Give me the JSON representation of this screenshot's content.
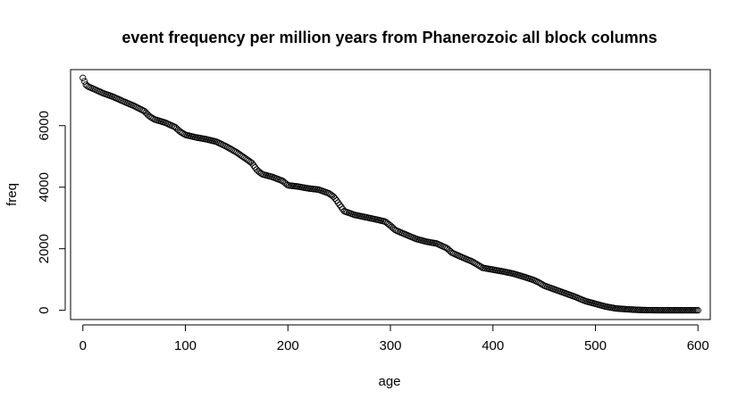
{
  "chart_data": {
    "type": "scatter",
    "title": "event frequency per million years from Phanerozoic all block columns",
    "xlabel": "age",
    "ylabel": "freq",
    "xlim": [
      -12,
      612
    ],
    "ylim": [
      -300,
      7820
    ],
    "xticks": [
      0,
      100,
      200,
      300,
      400,
      500,
      600
    ],
    "yticks": [
      0,
      2000,
      4000,
      6000
    ],
    "xtick_labels": [
      "0",
      "100",
      "200",
      "300",
      "400",
      "500",
      "600"
    ],
    "ytick_labels": [
      "0",
      "2000",
      "4000",
      "6000"
    ],
    "grid": false,
    "marker": "open-circle",
    "point_step": 1.5,
    "points": [
      [
        0,
        7550
      ],
      [
        1,
        7480
      ],
      [
        2,
        7400
      ],
      [
        3,
        7330
      ],
      [
        5,
        7270
      ],
      [
        10,
        7200
      ],
      [
        20,
        7050
      ],
      [
        30,
        6930
      ],
      [
        40,
        6780
      ],
      [
        50,
        6640
      ],
      [
        60,
        6470
      ],
      [
        65,
        6300
      ],
      [
        70,
        6200
      ],
      [
        80,
        6100
      ],
      [
        90,
        5950
      ],
      [
        95,
        5800
      ],
      [
        100,
        5700
      ],
      [
        110,
        5620
      ],
      [
        120,
        5560
      ],
      [
        130,
        5480
      ],
      [
        140,
        5320
      ],
      [
        150,
        5130
      ],
      [
        160,
        4900
      ],
      [
        165,
        4780
      ],
      [
        170,
        4550
      ],
      [
        175,
        4420
      ],
      [
        185,
        4330
      ],
      [
        195,
        4200
      ],
      [
        200,
        4060
      ],
      [
        210,
        4020
      ],
      [
        220,
        3960
      ],
      [
        230,
        3920
      ],
      [
        240,
        3800
      ],
      [
        245,
        3680
      ],
      [
        250,
        3450
      ],
      [
        255,
        3220
      ],
      [
        265,
        3100
      ],
      [
        275,
        3030
      ],
      [
        285,
        2960
      ],
      [
        295,
        2880
      ],
      [
        300,
        2750
      ],
      [
        305,
        2600
      ],
      [
        315,
        2460
      ],
      [
        325,
        2320
      ],
      [
        335,
        2230
      ],
      [
        345,
        2170
      ],
      [
        355,
        2020
      ],
      [
        360,
        1870
      ],
      [
        370,
        1720
      ],
      [
        380,
        1580
      ],
      [
        390,
        1380
      ],
      [
        400,
        1320
      ],
      [
        410,
        1260
      ],
      [
        420,
        1190
      ],
      [
        430,
        1090
      ],
      [
        440,
        980
      ],
      [
        445,
        900
      ],
      [
        450,
        800
      ],
      [
        460,
        680
      ],
      [
        470,
        560
      ],
      [
        480,
        440
      ],
      [
        490,
        300
      ],
      [
        500,
        210
      ],
      [
        510,
        120
      ],
      [
        520,
        60
      ],
      [
        530,
        35
      ],
      [
        540,
        15
      ],
      [
        550,
        5
      ],
      [
        560,
        2
      ],
      [
        580,
        0
      ],
      [
        600,
        0
      ]
    ]
  }
}
